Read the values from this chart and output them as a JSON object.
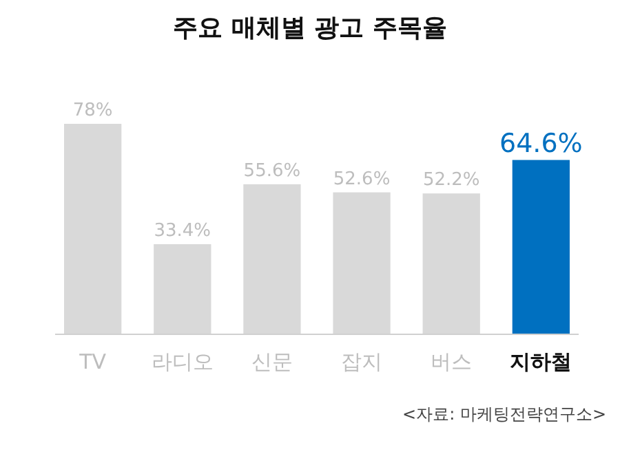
{
  "chart_data": {
    "type": "bar",
    "title": "주요 매체별 광고 주목율",
    "categories": [
      "TV",
      "라디오",
      "신문",
      "잡지",
      "버스",
      "지하철"
    ],
    "values": [
      78,
      33.4,
      55.6,
      52.6,
      52.2,
      64.6
    ],
    "value_labels": [
      "78%",
      "33.4%",
      "55.6%",
      "52.6%",
      "52.2%",
      "64.6%"
    ],
    "colors": [
      "#d9d9d9",
      "#d9d9d9",
      "#d9d9d9",
      "#d9d9d9",
      "#d9d9d9",
      "#0070c0"
    ],
    "annotations": [
      "<자료: 마케팅전략연구소>"
    ]
  }
}
